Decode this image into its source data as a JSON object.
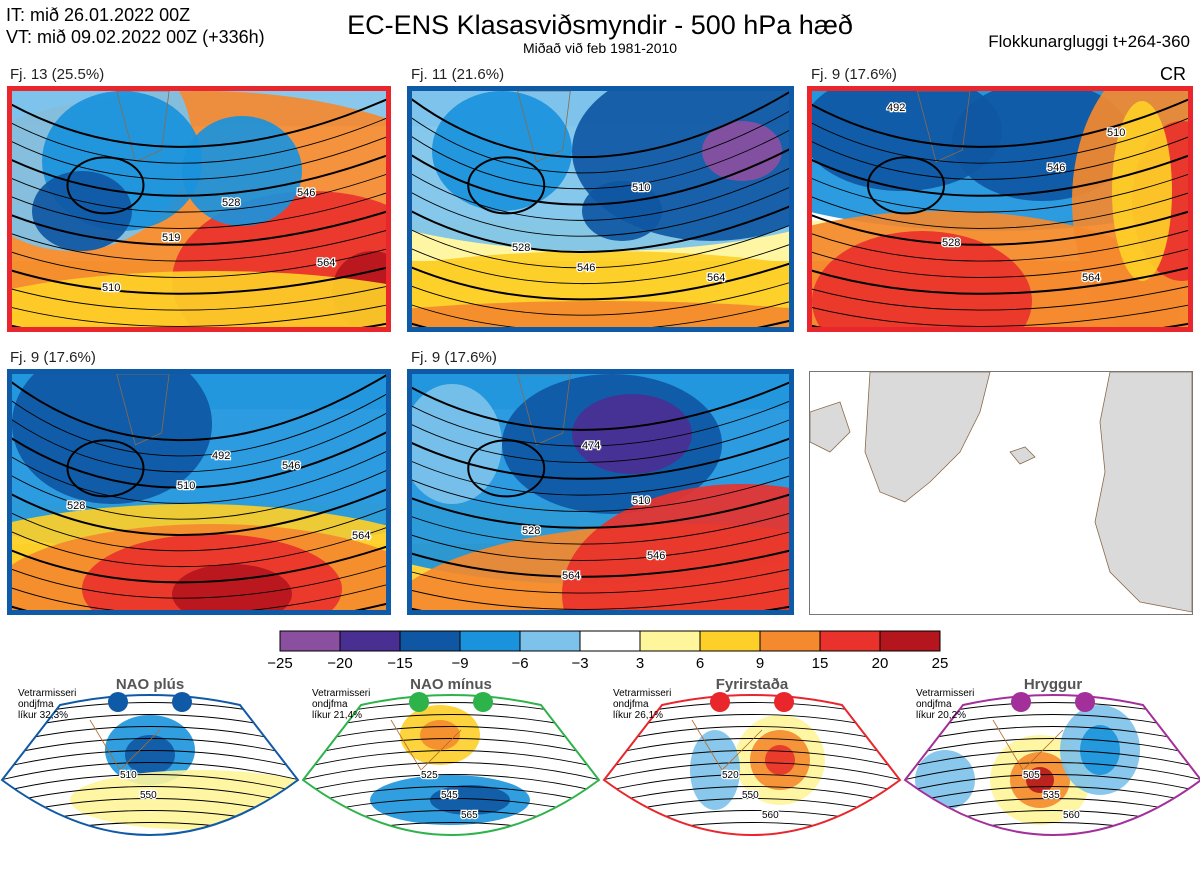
{
  "header": {
    "it_line": "IT: mið 26.01.2022 00Z",
    "vt_line": "VT: mið 09.02.2022 00Z  (+336h)",
    "title": "EC-ENS Klasasviðsmyndir - 500 hPa hæð",
    "subtitle": "Miðað við feb 1981-2010",
    "window": "Flokkunargluggi t+264-360",
    "cr": "CR"
  },
  "chart_data": {
    "type": "heatmap",
    "title": "EC-ENS Klasasviðsmyndir - 500 hPa hæð",
    "clusters": [
      {
        "label": "Fj. 13 (25.5%)",
        "members": 13,
        "percent": 25.5,
        "regime_color": "#e8262c",
        "contours": [
          "510",
          "519",
          "528",
          "546",
          "564"
        ]
      },
      {
        "label": "Fj. 11 (21.6%)",
        "members": 11,
        "percent": 21.6,
        "regime_color": "#0f5aa6",
        "contours": [
          "510",
          "528",
          "546",
          "564"
        ]
      },
      {
        "label": "Fj. 9 (17.6%)",
        "members": 9,
        "percent": 17.6,
        "regime_color": "#e8262c",
        "contours": [
          "492",
          "510",
          "528",
          "546",
          "564"
        ]
      },
      {
        "label": "Fj. 9 (17.6%)",
        "members": 9,
        "percent": 17.6,
        "regime_color": "#0f5aa6",
        "contours": [
          "492",
          "510",
          "528",
          "546",
          "564"
        ]
      },
      {
        "label": "Fj. 9 (17.6%)",
        "members": 9,
        "percent": 17.6,
        "regime_color": "#0f5aa6",
        "contours": [
          "474",
          "510",
          "528",
          "546",
          "564"
        ]
      }
    ],
    "colorbar": {
      "ticks": [
        "−25",
        "−20",
        "−15",
        "−9",
        "−6",
        "−3",
        "3",
        "6",
        "9",
        "15",
        "20",
        "25"
      ],
      "colors": [
        "#8b4fa0",
        "#4a2f92",
        "#0f57a3",
        "#1a93dc",
        "#7cc2ea",
        "#ffffff",
        "#fff59a",
        "#fdcf28",
        "#f4892e",
        "#e9322c",
        "#b5161d"
      ]
    },
    "regimes": [
      {
        "name": "NAO plús",
        "side": [
          "Vetrarmisseri",
          "ondjfma",
          "líkur 32,3%"
        ],
        "color": "#0f5aa6",
        "contours": [
          "510",
          "550"
        ]
      },
      {
        "name": "NAO mínus",
        "side": [
          "Vetrarmisseri",
          "ondjfma",
          "líkur 21,4%"
        ],
        "color": "#2db34a",
        "contours": [
          "525",
          "545",
          "565"
        ]
      },
      {
        "name": "Fyrirstaða",
        "side": [
          "Vetrarmisseri",
          "ondjfma",
          "líkur 26,1%"
        ],
        "color": "#e8262c",
        "contours": [
          "520",
          "550",
          "560"
        ]
      },
      {
        "name": "Hryggur",
        "side": [
          "Vetrarmisseri",
          "ondjfma",
          "líkur 20,2%"
        ],
        "color": "#a3309a",
        "contours": [
          "505",
          "535",
          "560"
        ]
      }
    ]
  }
}
